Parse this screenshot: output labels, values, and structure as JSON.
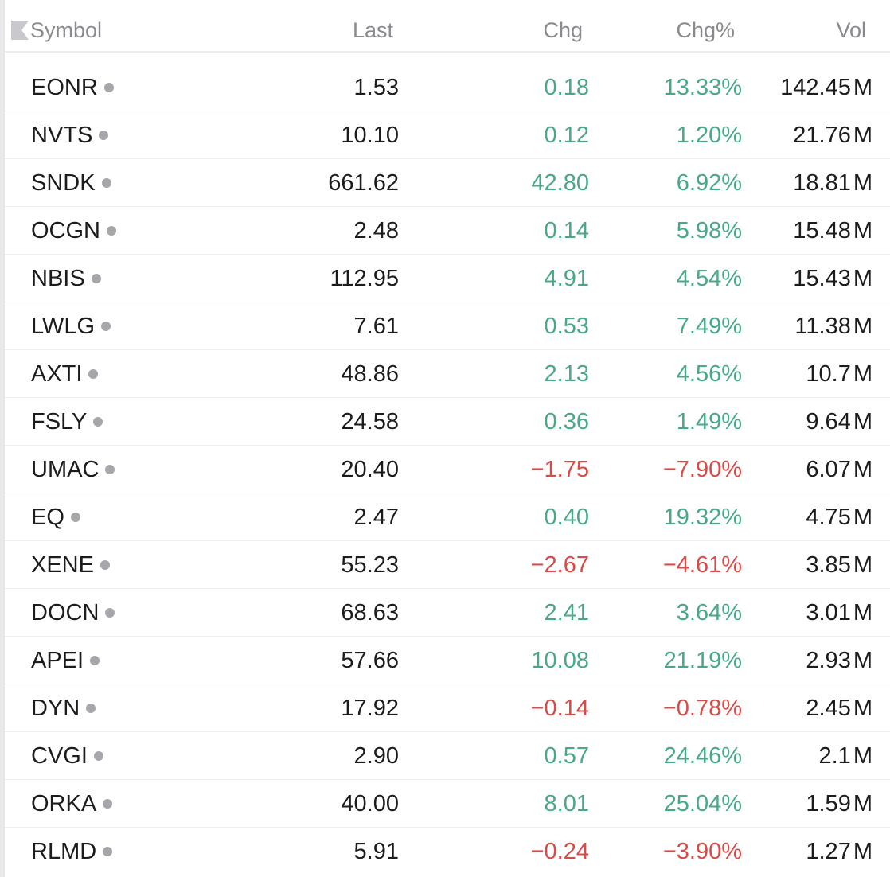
{
  "colors": {
    "positive": "#48a98a",
    "negative": "#dc4a47",
    "header_text": "#8a8a8e",
    "text": "#1c1c1e",
    "dot": "#a7a7ab"
  },
  "header": {
    "symbol": "Symbol",
    "last": "Last",
    "chg": "Chg",
    "chg_pct": "Chg%",
    "vol": "Vol",
    "sort_icon": "sort-flag-icon"
  },
  "rows": [
    {
      "symbol": "EONR",
      "last": "1.53",
      "chg": "0.18",
      "chg_pct": "13.33%",
      "vol": "142.45",
      "vol_unit": "M",
      "direction": "up"
    },
    {
      "symbol": "NVTS",
      "last": "10.10",
      "chg": "0.12",
      "chg_pct": "1.20%",
      "vol": "21.76",
      "vol_unit": "M",
      "direction": "up"
    },
    {
      "symbol": "SNDK",
      "last": "661.62",
      "chg": "42.80",
      "chg_pct": "6.92%",
      "vol": "18.81",
      "vol_unit": "M",
      "direction": "up"
    },
    {
      "symbol": "OCGN",
      "last": "2.48",
      "chg": "0.14",
      "chg_pct": "5.98%",
      "vol": "15.48",
      "vol_unit": "M",
      "direction": "up"
    },
    {
      "symbol": "NBIS",
      "last": "112.95",
      "chg": "4.91",
      "chg_pct": "4.54%",
      "vol": "15.43",
      "vol_unit": "M",
      "direction": "up"
    },
    {
      "symbol": "LWLG",
      "last": "7.61",
      "chg": "0.53",
      "chg_pct": "7.49%",
      "vol": "11.38",
      "vol_unit": "M",
      "direction": "up"
    },
    {
      "symbol": "AXTI",
      "last": "48.86",
      "chg": "2.13",
      "chg_pct": "4.56%",
      "vol": "10.7",
      "vol_unit": "M",
      "direction": "up"
    },
    {
      "symbol": "FSLY",
      "last": "24.58",
      "chg": "0.36",
      "chg_pct": "1.49%",
      "vol": "9.64",
      "vol_unit": "M",
      "direction": "up"
    },
    {
      "symbol": "UMAC",
      "last": "20.40",
      "chg": "−1.75",
      "chg_pct": "−7.90%",
      "vol": "6.07",
      "vol_unit": "M",
      "direction": "down"
    },
    {
      "symbol": "EQ",
      "last": "2.47",
      "chg": "0.40",
      "chg_pct": "19.32%",
      "vol": "4.75",
      "vol_unit": "M",
      "direction": "up"
    },
    {
      "symbol": "XENE",
      "last": "55.23",
      "chg": "−2.67",
      "chg_pct": "−4.61%",
      "vol": "3.85",
      "vol_unit": "M",
      "direction": "down"
    },
    {
      "symbol": "DOCN",
      "last": "68.63",
      "chg": "2.41",
      "chg_pct": "3.64%",
      "vol": "3.01",
      "vol_unit": "M",
      "direction": "up"
    },
    {
      "symbol": "APEI",
      "last": "57.66",
      "chg": "10.08",
      "chg_pct": "21.19%",
      "vol": "2.93",
      "vol_unit": "M",
      "direction": "up"
    },
    {
      "symbol": "DYN",
      "last": "17.92",
      "chg": "−0.14",
      "chg_pct": "−0.78%",
      "vol": "2.45",
      "vol_unit": "M",
      "direction": "down"
    },
    {
      "symbol": "CVGI",
      "last": "2.90",
      "chg": "0.57",
      "chg_pct": "24.46%",
      "vol": "2.1",
      "vol_unit": "M",
      "direction": "up"
    },
    {
      "symbol": "ORKA",
      "last": "40.00",
      "chg": "8.01",
      "chg_pct": "25.04%",
      "vol": "1.59",
      "vol_unit": "M",
      "direction": "up"
    },
    {
      "symbol": "RLMD",
      "last": "5.91",
      "chg": "−0.24",
      "chg_pct": "−3.90%",
      "vol": "1.27",
      "vol_unit": "M",
      "direction": "down"
    }
  ]
}
